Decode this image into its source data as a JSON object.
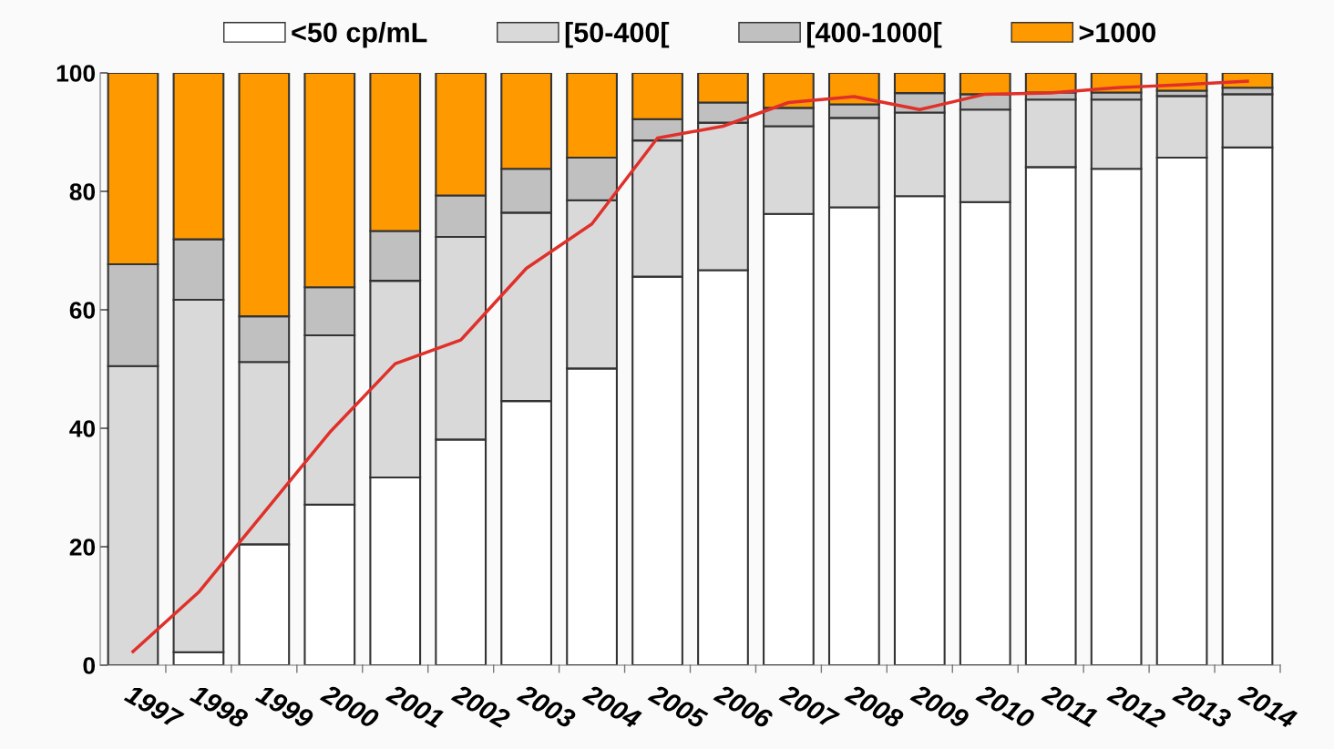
{
  "chart_data": {
    "type": "bar",
    "stacked": true,
    "categories": [
      "1997",
      "1998",
      "1999",
      "2000",
      "2001",
      "2002",
      "2003",
      "2004",
      "2005",
      "2006",
      "2007",
      "2008",
      "2009",
      "2010",
      "2011",
      "2012",
      "2013",
      "2014"
    ],
    "series": [
      {
        "name": "<50 cp/mL",
        "color": "#ffffff",
        "values": [
          0,
          2.2,
          20.4,
          27.1,
          31.7,
          38.1,
          44.6,
          50.1,
          65.6,
          66.7,
          76.2,
          77.3,
          79.2,
          78.2,
          84.1,
          83.8,
          85.7,
          87.4
        ]
      },
      {
        "name": "[50-400[",
        "color": "#d9d9d9",
        "values": [
          50.5,
          59.5,
          30.8,
          28.6,
          33.2,
          34.2,
          31.8,
          28.4,
          23.0,
          24.9,
          14.8,
          15.1,
          14.1,
          15.6,
          11.4,
          11.7,
          10.4,
          9.0
        ]
      },
      {
        "name": "[400-1000[",
        "color": "#c0c0c0",
        "values": [
          17.2,
          10.2,
          7.7,
          8.1,
          8.4,
          7.0,
          7.4,
          7.2,
          3.6,
          3.4,
          3.1,
          2.3,
          3.3,
          2.6,
          1.2,
          1.2,
          0.9,
          1.1
        ]
      },
      {
        "name": ">1000",
        "color": "#ff9900",
        "values": [
          32.3,
          28.1,
          41.1,
          36.2,
          26.7,
          20.7,
          16.2,
          14.3,
          7.8,
          5.0,
          5.9,
          5.3,
          3.4,
          3.6,
          3.3,
          3.3,
          3.0,
          2.5
        ]
      },
      {
        "type": "line",
        "color": "#e0302a",
        "values": [
          2.3,
          12.3,
          25.8,
          39.3,
          50.9,
          54.9,
          67.0,
          74.5,
          89.0,
          91.0,
          95.0,
          96.0,
          93.8,
          96.4,
          96.6,
          97.5,
          98.0,
          98.6
        ]
      }
    ],
    "ylim": [
      0,
      100
    ],
    "yticks": [
      0,
      20,
      40,
      60,
      80,
      100
    ],
    "grid": false,
    "legend": "top",
    "marker": "none",
    "line_style": "solid"
  }
}
